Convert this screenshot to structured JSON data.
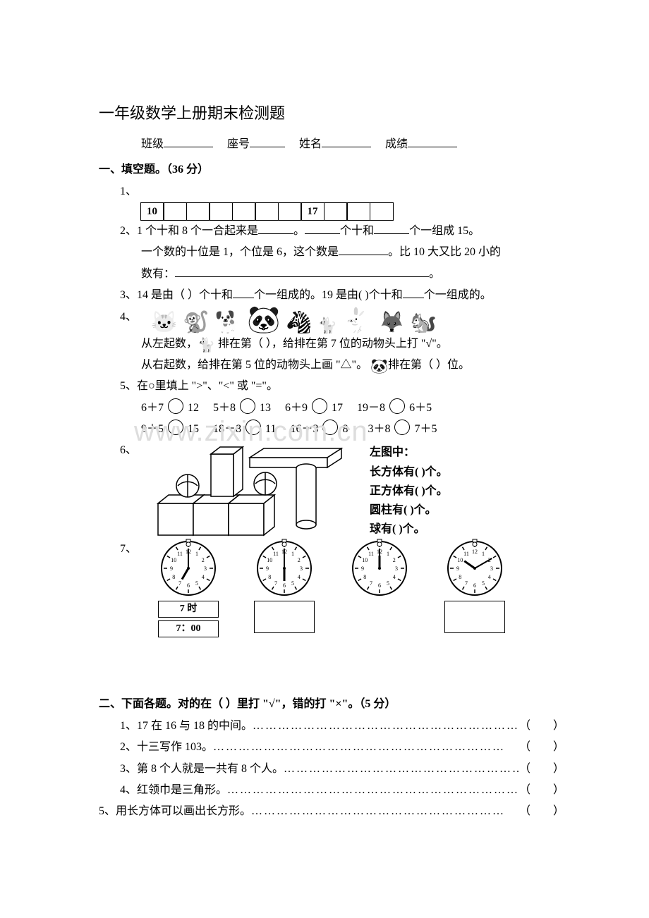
{
  "title": "一年级数学上册期末检测题",
  "header": {
    "class_label": "班级",
    "seat_label": "座号",
    "name_label": "姓名",
    "score_label": "成绩"
  },
  "section1": {
    "heading": "一、填空题。（36 分）",
    "q1": {
      "label": "1、",
      "seq": [
        "10",
        "",
        "",
        "",
        "",
        "",
        "",
        "17",
        "",
        "",
        ""
      ]
    },
    "q2": {
      "label": "2、",
      "line1_a": "1 个十和 8 个一合起来是",
      "line1_b": "。",
      "line1_c": "个十和",
      "line1_d": "个一组成 15。",
      "line2_a": "一个数的十位是 1，个位是 6，这个数是",
      "line2_b": "。比 10 大又比 20 小的",
      "line3_a": "数有：",
      "line3_b": "。"
    },
    "q3": {
      "label": "3、",
      "text_a": "14 是由（  ）个十和",
      "text_b": "个一组成的。19 是由( )个十和",
      "text_c": "个一组成的。"
    },
    "q4": {
      "label": "4、",
      "line1_a": "从左起数，",
      "line1_b": " 排在第（   ），给排在第 7 位的动物头上打 \"√\"。",
      "line2_a": "从右起数，给排在第 5 位的动物头上画 \"△\"。 ",
      "line2_b": "排在第（   ）位。"
    },
    "q5": {
      "label": "5、",
      "intro": "在○里填上 \">\"、\"<\" 或 \"=\"。",
      "row1": [
        {
          "l": "6＋7",
          "r": "12"
        },
        {
          "l": "5＋8",
          "r": "13"
        },
        {
          "l": "6＋9",
          "r": "17"
        },
        {
          "l": "19－8",
          "r": "6＋5"
        }
      ],
      "row2": [
        {
          "l": "9＋5",
          "r": "15"
        },
        {
          "l": "18－8",
          "r": "11"
        },
        {
          "l": "16－3",
          "r": "8"
        },
        {
          "l": "3＋8",
          "r": "7＋5"
        }
      ]
    },
    "q6": {
      "label": "6、",
      "caption": "左图中：",
      "items": [
        "长方体有(        )个。",
        "正方体有(          )个。",
        "圆柱有(        )个。",
        "球有(        )个。"
      ]
    },
    "q7": {
      "label": "7、",
      "clocks": [
        {
          "h": 7,
          "m": 0,
          "ans1": "7 时",
          "ans2": "7：00"
        },
        {
          "h": 6,
          "m": 0
        },
        {
          "h": 12,
          "m": 0
        },
        {
          "h": 10,
          "m": 10
        }
      ]
    }
  },
  "section2": {
    "heading": "二、下面各题。对的在（ ）里打 \"√\"，错的打 \"×\"。（5 分）",
    "items": [
      {
        "n": "1、",
        "t": "17 在 16 与 18 的中间。"
      },
      {
        "n": "2、",
        "t": "十三写作 103。"
      },
      {
        "n": "3、",
        "t": "第 8 个人就是一共有 8 个人。"
      },
      {
        "n": "4、",
        "t": "红领巾是三角形。"
      }
    ],
    "last": {
      "n": "5、",
      "t": "用长方体可以画出长方形。"
    }
  },
  "watermark": "www.zixin.com.cn",
  "colors": {
    "text": "#000000",
    "background": "#ffffff",
    "watermark": "#dddddd"
  }
}
